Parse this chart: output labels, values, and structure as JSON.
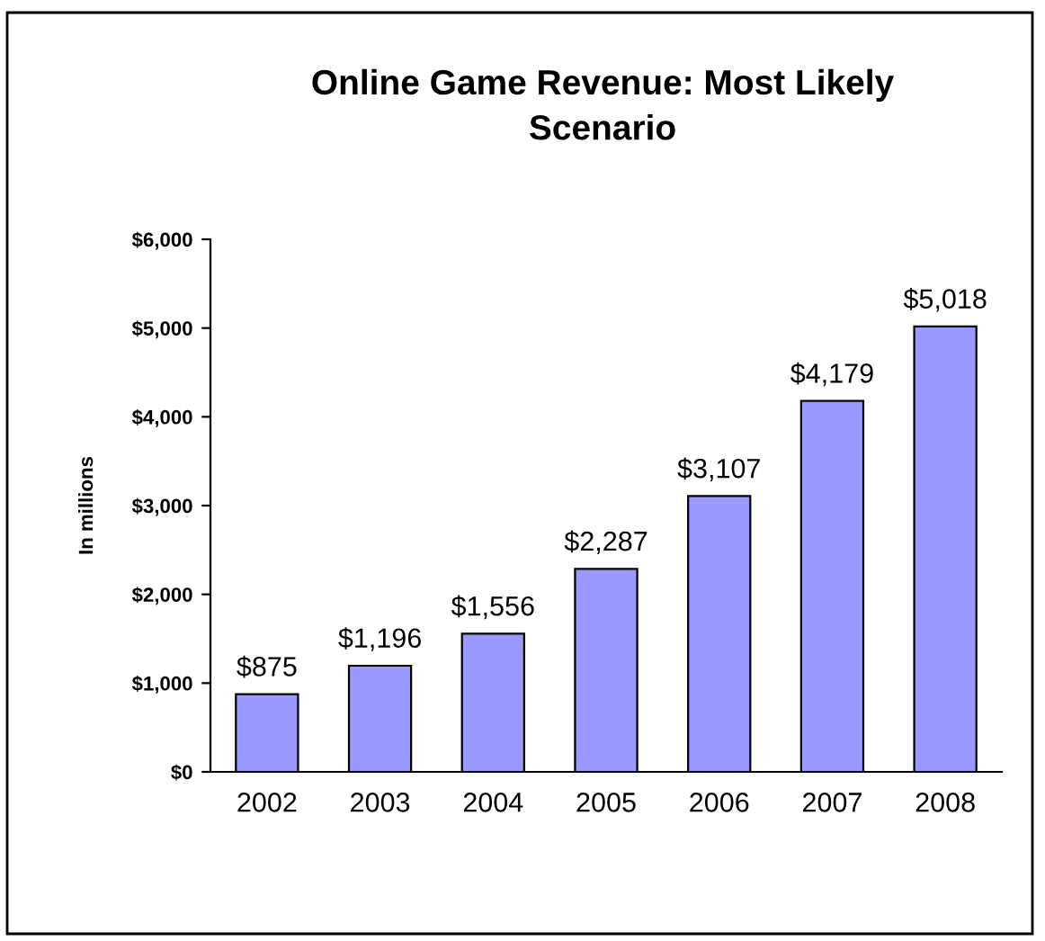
{
  "chart_data": {
    "type": "bar",
    "title": "Online Game Revenue: Most Likely\nScenario",
    "ylabel": "In millions",
    "categories": [
      "2002",
      "2003",
      "2004",
      "2005",
      "2006",
      "2007",
      "2008"
    ],
    "values": [
      875,
      1196,
      1556,
      2287,
      3107,
      4179,
      5018
    ],
    "value_labels": [
      "$875",
      "$1,196",
      "$1,556",
      "$2,287",
      "$3,107",
      "$4,179",
      "$5,018"
    ],
    "color": "#9999ff",
    "ylim": [
      0,
      6000
    ],
    "yticks": [
      {
        "value": 0,
        "label": "$0"
      },
      {
        "value": 1000,
        "label": "$1,000"
      },
      {
        "value": 2000,
        "label": "$2,000"
      },
      {
        "value": 3000,
        "label": "$3,000"
      },
      {
        "value": 4000,
        "label": "$4,000"
      },
      {
        "value": 5000,
        "label": "$5,000"
      },
      {
        "value": 6000,
        "label": "$6,000"
      }
    ],
    "grid": false,
    "legend": false
  }
}
